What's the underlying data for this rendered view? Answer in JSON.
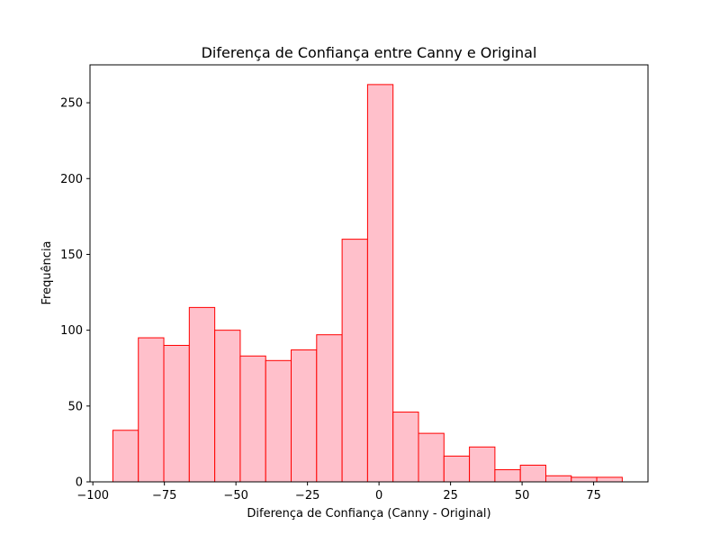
{
  "chart_data": {
    "type": "bar",
    "title": "Diferença de Confiança entre Canny e Original",
    "xlabel": "Diferença de Confiança (Canny - Original)",
    "ylabel": "Frequência",
    "xlim": [
      -101,
      94
    ],
    "ylim": [
      0,
      275
    ],
    "xticks": [
      -100,
      -75,
      -50,
      -25,
      0,
      25,
      50,
      75
    ],
    "xtick_labels": [
      "−100",
      "−75",
      "−50",
      "−25",
      "0",
      "25",
      "50",
      "75"
    ],
    "yticks": [
      0,
      50,
      100,
      150,
      200,
      250
    ],
    "yticks_labels": [
      "0",
      "50",
      "100",
      "150",
      "200",
      "250"
    ],
    "bin_edges": [
      -93,
      -84.1,
      -75.2,
      -66.3,
      -57.4,
      -48.5,
      -39.6,
      -30.7,
      -21.8,
      -12.9,
      -4.0,
      4.9,
      13.8,
      22.7,
      31.6,
      40.5,
      49.4,
      58.3,
      67.2,
      76.1,
      85.0
    ],
    "values": [
      34,
      95,
      90,
      115,
      100,
      83,
      80,
      87,
      97,
      160,
      262,
      46,
      32,
      17,
      23,
      8,
      11,
      4,
      3,
      3
    ],
    "bar_fill": "#ffc0cb",
    "bar_edge": "#ff0000",
    "grid": false
  }
}
